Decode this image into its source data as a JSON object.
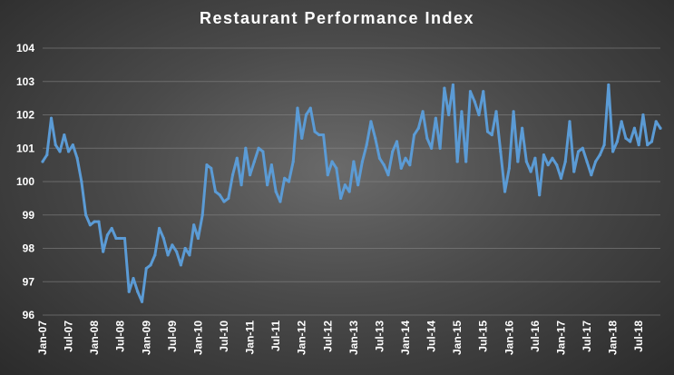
{
  "chart_data": {
    "type": "line",
    "title": "Restaurant Performance Index",
    "xlabel": "",
    "ylabel": "",
    "ylim": [
      96,
      104
    ],
    "yticks": [
      "96",
      "97",
      "98",
      "99",
      "100",
      "101",
      "102",
      "103",
      "104"
    ],
    "x_tick_labels": [
      "Jan-07",
      "Jul-07",
      "Jan-08",
      "Jul-08",
      "Jan-09",
      "Jul-09",
      "Jan-10",
      "Jul-10",
      "Jan-11",
      "Jul-11",
      "Jan-12",
      "Jul-12",
      "Jan-13",
      "Jul-13",
      "Jan-14",
      "Jul-14",
      "Jan-15",
      "Jul-15",
      "Jan-16",
      "Jul-16",
      "Jan-17",
      "Jul-17",
      "Jan-18",
      "Jul-18"
    ],
    "grid": true,
    "line_color": "#5b9bd5",
    "series": [
      {
        "values": [
          100.6,
          100.8,
          101.9,
          101.1,
          100.9,
          101.4,
          100.9,
          101.1,
          100.7,
          100.0,
          99.0,
          98.7,
          98.8,
          98.8,
          97.9,
          98.4,
          98.6,
          98.3,
          98.3,
          98.3,
          96.7,
          97.1,
          96.7,
          96.4,
          97.4,
          97.5,
          97.8,
          98.6,
          98.3,
          97.8,
          98.1,
          97.9,
          97.5,
          98.0,
          97.8,
          98.7,
          98.3,
          99.0,
          100.5,
          100.4,
          99.7,
          99.6,
          99.4,
          99.5,
          100.2,
          100.7,
          99.9,
          101.0,
          100.2,
          100.6,
          101.0,
          100.9,
          99.9,
          100.5,
          99.7,
          99.4,
          100.1,
          100.0,
          100.6,
          102.2,
          101.3,
          102.0,
          102.2,
          101.5,
          101.4,
          101.4,
          100.2,
          100.6,
          100.4,
          99.5,
          99.9,
          99.7,
          100.6,
          99.9,
          100.6,
          101.1,
          101.8,
          101.3,
          100.7,
          100.5,
          100.2,
          100.9,
          101.2,
          100.4,
          100.7,
          100.5,
          101.4,
          101.6,
          102.1,
          101.3,
          101.0,
          101.9,
          101.0,
          102.8,
          102.0,
          102.9,
          100.6,
          102.1,
          100.6,
          102.7,
          102.4,
          102.0,
          102.7,
          101.5,
          101.4,
          102.1,
          100.9,
          99.7,
          100.4,
          102.1,
          100.6,
          101.6,
          100.6,
          100.3,
          100.7,
          99.6,
          100.8,
          100.5,
          100.7,
          100.5,
          100.1,
          100.6,
          101.8,
          100.3,
          100.9,
          101.0,
          100.6,
          100.2,
          100.6,
          100.8,
          101.1,
          102.9,
          100.9,
          101.2,
          101.8,
          101.3,
          101.2,
          101.6,
          101.1,
          102.0,
          101.1,
          101.2,
          101.8,
          101.6
        ]
      }
    ]
  }
}
